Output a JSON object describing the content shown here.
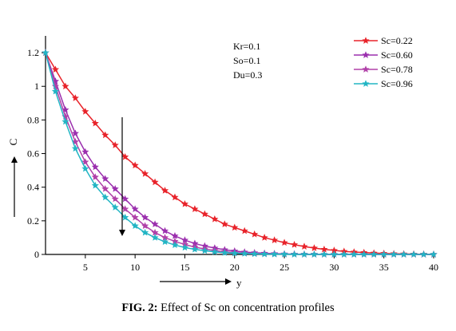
{
  "chart_data": {
    "type": "line",
    "xlabel": "y",
    "ylabel": "C",
    "xlim": [
      1,
      40
    ],
    "ylim": [
      0,
      1.3
    ],
    "xticks": [
      5,
      10,
      15,
      20,
      25,
      30,
      35,
      40
    ],
    "yticks": [
      0,
      0.2,
      0.4,
      0.6,
      0.8,
      1,
      1.2
    ],
    "grid": false,
    "legend_position": "top-right",
    "annotations": [
      "Kr=0.1",
      "So=0.1",
      "Du=0.3"
    ],
    "x": [
      1,
      2,
      3,
      4,
      5,
      6,
      7,
      8,
      9,
      10,
      11,
      12,
      13,
      14,
      15,
      16,
      17,
      18,
      19,
      20,
      21,
      22,
      23,
      24,
      25,
      26,
      27,
      28,
      29,
      30,
      31,
      32,
      33,
      34,
      35,
      36,
      37,
      38,
      39,
      40
    ],
    "series": [
      {
        "name": "Sc=0.22",
        "color": "#e8232a",
        "marker": "star",
        "values": [
          1.2,
          1.1,
          1.0,
          0.93,
          0.85,
          0.78,
          0.71,
          0.65,
          0.58,
          0.53,
          0.48,
          0.43,
          0.38,
          0.34,
          0.3,
          0.27,
          0.24,
          0.21,
          0.18,
          0.16,
          0.14,
          0.12,
          0.1,
          0.085,
          0.07,
          0.058,
          0.047,
          0.038,
          0.03,
          0.024,
          0.018,
          0.014,
          0.011,
          0.008,
          0.006,
          0.004,
          0.003,
          0.002,
          0.001,
          0.0
        ]
      },
      {
        "name": "Sc=0.60",
        "color": "#9b2fae",
        "marker": "star",
        "values": [
          1.2,
          1.03,
          0.86,
          0.72,
          0.61,
          0.52,
          0.45,
          0.39,
          0.33,
          0.27,
          0.22,
          0.18,
          0.14,
          0.11,
          0.085,
          0.065,
          0.05,
          0.038,
          0.028,
          0.02,
          0.014,
          0.01,
          0.007,
          0.005,
          0.003,
          0.002,
          0.001,
          0.001,
          0.0,
          0.0,
          0.0,
          0.0,
          0.0,
          0.0,
          0.0,
          0.0,
          0.0,
          0.0,
          0.0,
          0.0
        ]
      },
      {
        "name": "Sc=0.78",
        "color": "#b040a8",
        "marker": "star",
        "values": [
          1.2,
          1.0,
          0.82,
          0.67,
          0.55,
          0.46,
          0.39,
          0.33,
          0.27,
          0.22,
          0.17,
          0.13,
          0.1,
          0.078,
          0.059,
          0.044,
          0.032,
          0.023,
          0.016,
          0.011,
          0.007,
          0.005,
          0.003,
          0.002,
          0.001,
          0.001,
          0.0,
          0.0,
          0.0,
          0.0,
          0.0,
          0.0,
          0.0,
          0.0,
          0.0,
          0.0,
          0.0,
          0.0,
          0.0,
          0.0
        ]
      },
      {
        "name": "Sc=0.96",
        "color": "#22b5c4",
        "marker": "star",
        "values": [
          1.2,
          0.97,
          0.79,
          0.63,
          0.51,
          0.41,
          0.34,
          0.28,
          0.22,
          0.17,
          0.13,
          0.1,
          0.075,
          0.056,
          0.041,
          0.03,
          0.022,
          0.015,
          0.01,
          0.007,
          0.005,
          0.003,
          0.002,
          0.001,
          0.001,
          0.0,
          0.0,
          0.0,
          0.0,
          0.0,
          0.0,
          0.0,
          0.0,
          0.0,
          0.0,
          0.0,
          0.0,
          0.0,
          0.0,
          0.0
        ]
      }
    ]
  },
  "caption": {
    "label": "FIG. 2:",
    "text": " Effect of Sc on concentration profiles"
  }
}
